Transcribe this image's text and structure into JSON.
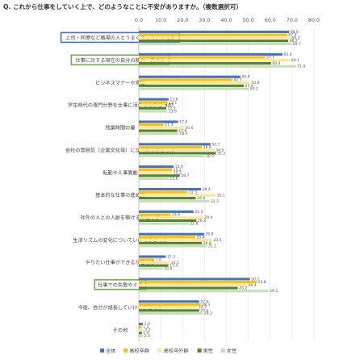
{
  "chart_data": {
    "type": "bar",
    "orientation": "horizontal",
    "title": "Q. これから仕事をしていく上で、どのようなことに不安がありますか。（複数選択可）",
    "xlim": [
      0,
      80
    ],
    "x_ticks": [
      "0.0",
      "10.0",
      "20.0",
      "30.0",
      "40.0",
      "50.0",
      "60.0",
      "70.0",
      "80.0"
    ],
    "grid": true,
    "legend_position": "bottom",
    "categories": [
      "上司・同僚など職場の人とうまくやっていけるか",
      "仕事に対する現在の自分の能力・スキル",
      "ビジネスマナーや常識",
      "学生時代の専門分野を仕事に活かせるかどうか",
      "残業時間の量",
      "会社の雰囲気（企業文化等）になじめるかどうか",
      "転勤や人事異動",
      "基本的な仕事の進め方",
      "社外の人との人脈を築けるかどうか",
      "生活リズムの変化についていけるかどうか",
      "やりたい仕事ができるかどうか",
      "仕事での失敗やミス",
      "今後、自分が成長していけるかどうか",
      "その他"
    ],
    "highlighted": [
      {
        "index": 0,
        "color": "#4472c4"
      },
      {
        "index": 1,
        "color": "#70ad47"
      },
      {
        "index": 11,
        "color": "#70ad47"
      }
    ],
    "series": [
      {
        "name": "全体",
        "color": "#4472c4",
        "values": [
          68.6,
          65.6,
          46.4,
          13.6,
          17.9,
          32.7,
          15.9,
          28.4,
          25.0,
          29.8,
          12.3,
          50.7,
          27.6,
          1.9
        ]
      },
      {
        "name": "高校卒群",
        "color": "#ffc000",
        "values": [
          67.8,
          57.7,
          42.7,
          13.1,
          11.3,
          28.8,
          15.2,
          22.3,
          14.6,
          25.8,
          7.0,
          53.8,
          28.3,
          1.3
        ]
      },
      {
        "name": "高校卒外群",
        "color": "#ffe699",
        "values": [
          69.2,
          69.1,
          50.8,
          11.7,
          20.6,
          34.5,
          15.2,
          35.1,
          29.4,
          33.5,
          14.1,
          49.4,
          26.7,
          2.1
        ]
      },
      {
        "name": "男性",
        "color": "#548235",
        "values": [
          68.2,
          60.4,
          47.9,
          12.5,
          17.6,
          35.2,
          18.7,
          26.0,
          26.3,
          28.8,
          13.5,
          45.2,
          27.6,
          1.4
        ]
      },
      {
        "name": "女性",
        "color": "#c5e0b4",
        "values": [
          69.7,
          71.8,
          50.2,
          13.0,
          18.0,
          30.0,
          13.6,
          32.2,
          22.8,
          31.1,
          10.9,
          59.2,
          29.2,
          2.0
        ]
      }
    ]
  }
}
